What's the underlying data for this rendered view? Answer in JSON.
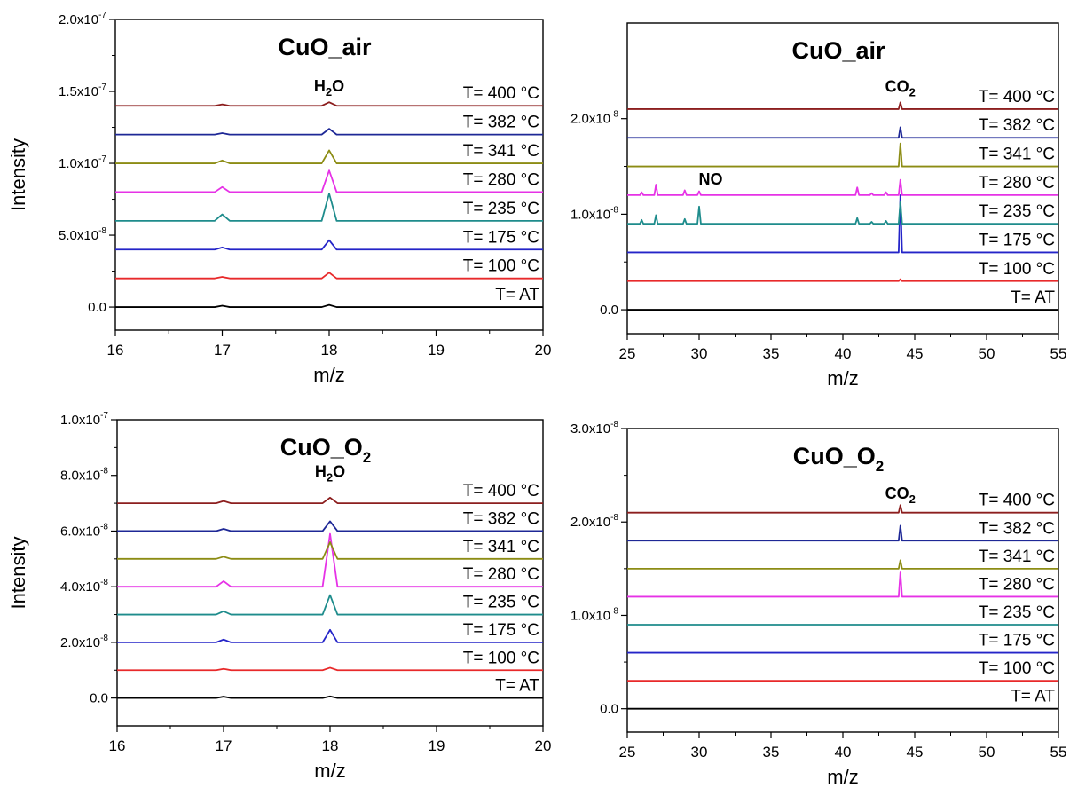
{
  "colors": {
    "T= AT": "#000000",
    "T= 100 °C": "#e8292a",
    "T= 175 °C": "#2424c8",
    "T= 235 °C": "#1e8c8c",
    "T= 280 °C": "#e632e6",
    "T= 341 °C": "#8c8c14",
    "T= 382 °C": "#1e2896",
    "T= 400 °C": "#8c1e1e"
  },
  "chart_data": [
    {
      "type": "line",
      "title": "CuO_air",
      "xlabel": "m/z",
      "ylabel": "Intensity",
      "xlim": [
        16,
        20
      ],
      "ylim": [
        -1.6e-08,
        2e-07
      ],
      "x_ticks": [
        16,
        17,
        18,
        19,
        20
      ],
      "y_ticks": [
        {
          "value": 0,
          "base": "0.0",
          "exp": ""
        },
        {
          "value": 5e-08,
          "base": "5.0x10",
          "exp": "-8"
        },
        {
          "value": 1e-07,
          "base": "1.0x10",
          "exp": "-7"
        },
        {
          "value": 1.5e-07,
          "base": "1.5x10",
          "exp": "-7"
        },
        {
          "value": 2e-07,
          "base": "2.0x10",
          "exp": "-7"
        }
      ],
      "grid": false,
      "annotations": [
        {
          "main": "H",
          "sub": "2",
          "rest": "O",
          "x": 18,
          "y": 1.5e-07
        }
      ],
      "series": [
        {
          "name": "T= AT",
          "offset": 0,
          "peaks": [
            [
              17,
              1e-09
            ],
            [
              18,
              1.5e-09
            ]
          ]
        },
        {
          "name": "T= 100 °C",
          "offset": 2e-08,
          "peaks": [
            [
              17,
              1e-09
            ],
            [
              18,
              4e-09
            ]
          ]
        },
        {
          "name": "T= 175 °C",
          "offset": 4e-08,
          "peaks": [
            [
              17,
              1.5e-09
            ],
            [
              18,
              6.5e-09
            ]
          ]
        },
        {
          "name": "T= 235 °C",
          "offset": 6e-08,
          "peaks": [
            [
              17,
              4.5e-09
            ],
            [
              18,
              1.9e-08
            ]
          ]
        },
        {
          "name": "T= 280 °C",
          "offset": 8e-08,
          "peaks": [
            [
              17,
              3.5e-09
            ],
            [
              18,
              1.5e-08
            ]
          ]
        },
        {
          "name": "T= 341 °C",
          "offset": 1e-07,
          "peaks": [
            [
              17,
              2e-09
            ],
            [
              18,
              9e-09
            ]
          ]
        },
        {
          "name": "T= 382 °C",
          "offset": 1.2e-07,
          "peaks": [
            [
              17,
              1e-09
            ],
            [
              18,
              4e-09
            ]
          ]
        },
        {
          "name": "T= 400 °C",
          "offset": 1.4e-07,
          "peaks": [
            [
              17,
              1e-09
            ],
            [
              18,
              2.5e-09
            ]
          ]
        }
      ]
    },
    {
      "type": "line",
      "title": "CuO_air",
      "xlabel": "m/z",
      "ylabel": "",
      "xlim": [
        25,
        55
      ],
      "ylim": [
        -2.5e-09,
        3e-08
      ],
      "x_ticks": [
        25,
        30,
        35,
        40,
        45,
        50,
        55
      ],
      "y_ticks": [
        {
          "value": 0,
          "base": "0.0",
          "exp": ""
        },
        {
          "value": 1e-08,
          "base": "1.0x10",
          "exp": "-8"
        },
        {
          "value": 2e-08,
          "base": "2.0x10",
          "exp": "-8"
        }
      ],
      "grid": false,
      "annotations": [
        {
          "main": "CO",
          "sub": "2",
          "rest": "",
          "x": 44,
          "y": 2.28e-08
        },
        {
          "main": "NO",
          "sub": "",
          "rest": "",
          "x": 30.8,
          "y": 1.31e-08
        }
      ],
      "series": [
        {
          "name": "T= AT",
          "offset": 0,
          "peaks": []
        },
        {
          "name": "T= 100 °C",
          "offset": 3e-09,
          "peaks": [
            [
              44,
              2e-10
            ]
          ]
        },
        {
          "name": "T= 175 °C",
          "offset": 6e-09,
          "peaks": [
            [
              44,
              6e-09
            ]
          ]
        },
        {
          "name": "T= 235 °C",
          "offset": 9e-09,
          "peaks": [
            [
              26,
              4e-10
            ],
            [
              27,
              9e-10
            ],
            [
              29,
              5e-10
            ],
            [
              30,
              1.8e-09
            ],
            [
              41,
              6e-10
            ],
            [
              42,
              2e-10
            ],
            [
              43,
              3e-10
            ],
            [
              44,
              2.3e-09
            ]
          ]
        },
        {
          "name": "T= 280 °C",
          "offset": 1.2e-08,
          "peaks": [
            [
              26,
              3e-10
            ],
            [
              27,
              1.1e-09
            ],
            [
              29,
              5e-10
            ],
            [
              30,
              4e-10
            ],
            [
              41,
              8e-10
            ],
            [
              42,
              2e-10
            ],
            [
              43,
              3e-10
            ],
            [
              44,
              1.6e-09
            ]
          ]
        },
        {
          "name": "T= 341 °C",
          "offset": 1.5e-08,
          "peaks": [
            [
              44,
              2.4e-09
            ]
          ]
        },
        {
          "name": "T= 382 °C",
          "offset": 1.8e-08,
          "peaks": [
            [
              44,
              1.1e-09
            ]
          ]
        },
        {
          "name": "T= 400 °C",
          "offset": 2.1e-08,
          "peaks": [
            [
              44,
              7e-10
            ]
          ]
        }
      ]
    },
    {
      "type": "line",
      "title": "CuO_O2",
      "title_main": "CuO_O",
      "title_sub": "2",
      "xlabel": "m/z",
      "ylabel": "Intensity",
      "xlim": [
        16,
        20
      ],
      "ylim": [
        -1e-08,
        1e-07
      ],
      "x_ticks": [
        16,
        17,
        18,
        19,
        20
      ],
      "y_ticks": [
        {
          "value": 0,
          "base": "0.0",
          "exp": ""
        },
        {
          "value": 2e-08,
          "base": "2.0x10",
          "exp": "-8"
        },
        {
          "value": 4e-08,
          "base": "4.0x10",
          "exp": "-8"
        },
        {
          "value": 6e-08,
          "base": "6.0x10",
          "exp": "-8"
        },
        {
          "value": 8e-08,
          "base": "8.0x10",
          "exp": "-8"
        },
        {
          "value": 1e-07,
          "base": "1.0x10",
          "exp": "-7"
        }
      ],
      "grid": false,
      "annotations": [
        {
          "main": "H",
          "sub": "2",
          "rest": "O",
          "x": 18,
          "y": 7.95e-08
        }
      ],
      "series": [
        {
          "name": "T= AT",
          "offset": 0,
          "peaks": [
            [
              17,
              5e-10
            ],
            [
              18,
              6e-10
            ]
          ]
        },
        {
          "name": "T= 100 °C",
          "offset": 1e-08,
          "peaks": [
            [
              17,
              5e-10
            ],
            [
              18,
              9e-10
            ]
          ]
        },
        {
          "name": "T= 175 °C",
          "offset": 2e-08,
          "peaks": [
            [
              17,
              1e-09
            ],
            [
              18,
              4.5e-09
            ]
          ]
        },
        {
          "name": "T= 235 °C",
          "offset": 3e-08,
          "peaks": [
            [
              17,
              1.2e-09
            ],
            [
              18,
              7e-09
            ]
          ]
        },
        {
          "name": "T= 280 °C",
          "offset": 4e-08,
          "peaks": [
            [
              17,
              2e-09
            ],
            [
              18,
              1.9e-08
            ]
          ]
        },
        {
          "name": "T= 341 °C",
          "offset": 5e-08,
          "peaks": [
            [
              17,
              8e-10
            ],
            [
              18,
              6e-09
            ]
          ]
        },
        {
          "name": "T= 382 °C",
          "offset": 6e-08,
          "peaks": [
            [
              17,
              8e-10
            ],
            [
              18,
              3.5e-09
            ]
          ]
        },
        {
          "name": "T= 400 °C",
          "offset": 7e-08,
          "peaks": [
            [
              17,
              8e-10
            ],
            [
              18,
              2e-09
            ]
          ]
        }
      ]
    },
    {
      "type": "line",
      "title": "CuO_O2",
      "title_main": "CuO_O",
      "title_sub": "2",
      "xlabel": "m/z",
      "ylabel": "",
      "xlim": [
        25,
        55
      ],
      "ylim": [
        -2.5e-09,
        3e-08
      ],
      "x_ticks": [
        25,
        30,
        35,
        40,
        45,
        50,
        55
      ],
      "y_ticks": [
        {
          "value": 0,
          "base": "0.0",
          "exp": ""
        },
        {
          "value": 1e-08,
          "base": "1.0x10",
          "exp": "-8"
        },
        {
          "value": 2e-08,
          "base": "2.0x10",
          "exp": "-8"
        },
        {
          "value": 3e-08,
          "base": "3.0x10",
          "exp": "-8"
        }
      ],
      "grid": false,
      "annotations": [
        {
          "main": "CO",
          "sub": "2",
          "rest": "",
          "x": 44,
          "y": 2.25e-08
        }
      ],
      "series": [
        {
          "name": "T= AT",
          "offset": 0,
          "peaks": []
        },
        {
          "name": "T= 100 °C",
          "offset": 3e-09,
          "peaks": []
        },
        {
          "name": "T= 175 °C",
          "offset": 6e-09,
          "peaks": []
        },
        {
          "name": "T= 235 °C",
          "offset": 9e-09,
          "peaks": []
        },
        {
          "name": "T= 280 °C",
          "offset": 1.2e-08,
          "peaks": [
            [
              44,
              2.6e-09
            ]
          ]
        },
        {
          "name": "T= 341 °C",
          "offset": 1.5e-08,
          "peaks": [
            [
              44,
              9e-10
            ]
          ]
        },
        {
          "name": "T= 382 °C",
          "offset": 1.8e-08,
          "peaks": [
            [
              44,
              1.6e-09
            ]
          ]
        },
        {
          "name": "T= 400 °C",
          "offset": 2.1e-08,
          "peaks": [
            [
              44,
              8e-10
            ]
          ]
        }
      ]
    }
  ]
}
